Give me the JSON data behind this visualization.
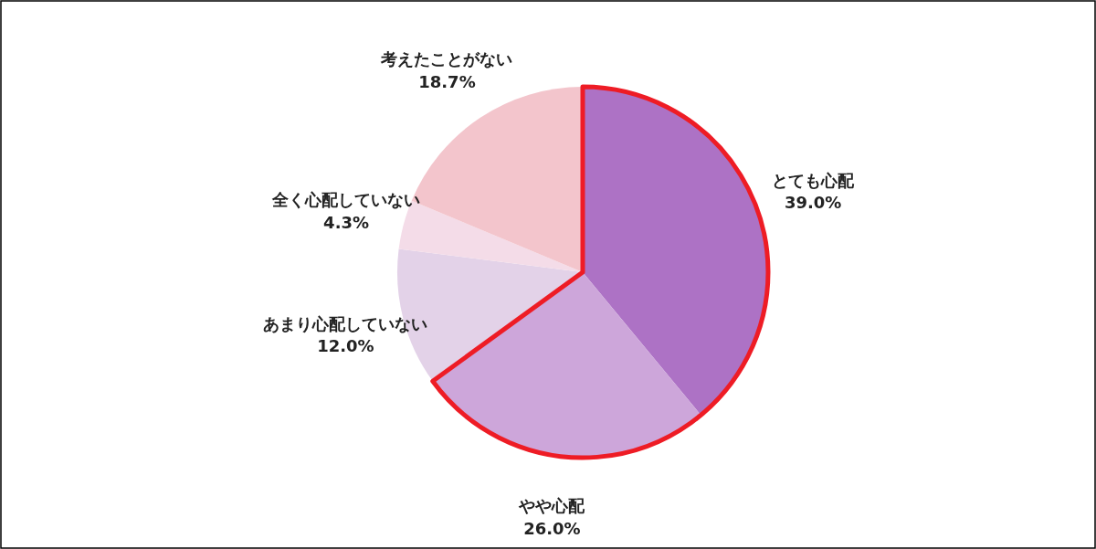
{
  "chart_data": {
    "type": "pie",
    "categories": [
      "とても心配",
      "やや心配",
      "あまり心配していない",
      "全く心配していない",
      "考えたことがない"
    ],
    "values": [
      39.0,
      26.0,
      12.0,
      4.3,
      18.7
    ],
    "colors": [
      "#ad72c5",
      "#cda6da",
      "#e3d2e8",
      "#f4dce8",
      "#f3c5cc"
    ],
    "value_labels": [
      "39.0%",
      "26.0%",
      "12.0%",
      "4.3%",
      "18.7%"
    ]
  }
}
